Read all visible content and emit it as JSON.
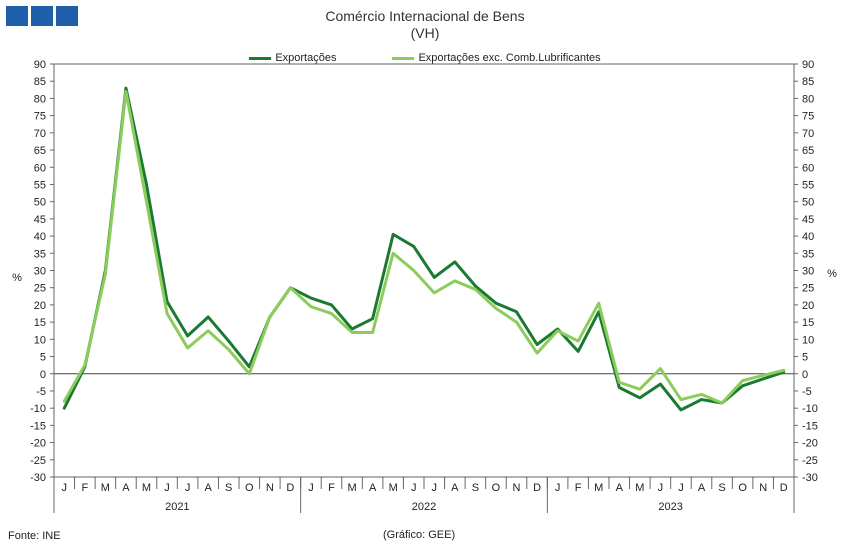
{
  "header": {
    "logo": "INE logo",
    "title_line1": "Comércio Internacional de Bens",
    "title_line2": "(VH)"
  },
  "footer": {
    "source": "Fonte: INE",
    "credit": "(Gráfico: GEE)"
  },
  "chart_data": {
    "type": "line",
    "title": "Comércio Internacional de Bens (VH)",
    "ylabel_left": "%",
    "ylabel_right": "%",
    "ylim": [
      -30,
      90
    ],
    "ytick_step": 5,
    "grid": false,
    "legend_position": "top-center",
    "month_labels": [
      "J",
      "F",
      "M",
      "A",
      "M",
      "J",
      "J",
      "A",
      "S",
      "O",
      "N",
      "D",
      "J",
      "F",
      "M",
      "A",
      "M",
      "J",
      "J",
      "A",
      "S",
      "O",
      "N",
      "D",
      "J",
      "F",
      "M",
      "A",
      "M",
      "J",
      "J",
      "A",
      "S",
      "O",
      "N",
      "D"
    ],
    "years": [
      "2021",
      "2022",
      "2023"
    ],
    "series": [
      {
        "name": "Exportações",
        "color": "#1a7a32",
        "values": [
          -10,
          2,
          30,
          83,
          55,
          21,
          11,
          16.5,
          9.5,
          2,
          16.5,
          25,
          22,
          20,
          13,
          16,
          40.5,
          37,
          28,
          32.5,
          25.5,
          20.5,
          18,
          8.5,
          13,
          6.5,
          18,
          -4,
          -7,
          -3,
          -10.5,
          -7.5,
          -8.5,
          -3.5,
          -1.5,
          0.5
        ]
      },
      {
        "name": "Exportações exc. Comb.Lubrificantes",
        "color": "#8ccc5c",
        "values": [
          -8,
          2.5,
          29,
          82,
          50,
          17.5,
          7.5,
          12.5,
          7,
          0,
          16.5,
          25,
          19.5,
          17.5,
          12,
          12,
          35,
          30,
          23.5,
          27,
          24.5,
          19,
          15,
          6,
          12.5,
          9.5,
          20.5,
          -2.5,
          -4.5,
          1.5,
          -7.5,
          -6,
          -8.5,
          -2,
          -0.5,
          1
        ]
      }
    ]
  }
}
